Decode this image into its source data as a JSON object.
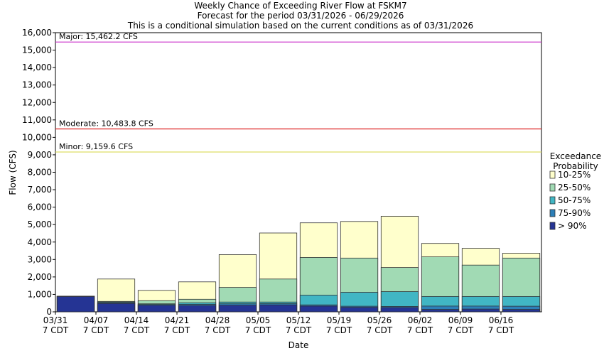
{
  "chart_data": {
    "type": "bar",
    "stacked": true,
    "title_lines": [
      "Weekly Chance of Exceeding River Flow at FSKM7",
      "Forecast for the period 03/31/2026 - 06/29/2026",
      "This is a conditional simulation based on the current conditions as of 03/31/2026"
    ],
    "xlabel": "Date",
    "ylabel": "Flow (CFS)",
    "ylim": [
      0,
      16000
    ],
    "yticks": [
      0,
      1000,
      2000,
      3000,
      4000,
      5000,
      6000,
      7000,
      8000,
      9000,
      10000,
      11000,
      12000,
      13000,
      14000,
      15000,
      16000
    ],
    "ytick_labels": [
      "0",
      "1,000",
      "2,000",
      "3,000",
      "4,000",
      "5,000",
      "6,000",
      "7,000",
      "8,000",
      "9,000",
      "10,000",
      "11,000",
      "12,000",
      "13,000",
      "14,000",
      "15,000",
      "16,000"
    ],
    "x_ticks": [
      {
        "line1": "03/31",
        "line2": "7 CDT"
      },
      {
        "line1": "04/07",
        "line2": "7 CDT"
      },
      {
        "line1": "04/14",
        "line2": "7 CDT"
      },
      {
        "line1": "04/21",
        "line2": "7 CDT"
      },
      {
        "line1": "04/28",
        "line2": "7 CDT"
      },
      {
        "line1": "05/05",
        "line2": "7 CDT"
      },
      {
        "line1": "05/12",
        "line2": "7 CDT"
      },
      {
        "line1": "05/19",
        "line2": "7 CDT"
      },
      {
        "line1": "05/26",
        "line2": "7 CDT"
      },
      {
        "line1": "06/02",
        "line2": "7 CDT"
      },
      {
        "line1": "06/09",
        "line2": "7 CDT"
      },
      {
        "line1": "06/16",
        "line2": "7 CDT"
      }
    ],
    "legend_title": [
      "Exceedance",
      "Probability"
    ],
    "legend_position": "right",
    "series": [
      {
        "name": "10-25%",
        "color": "#ffffcc",
        "top_values": [
          900,
          1880,
          1230,
          1720,
          3280,
          4520,
          5100,
          5180,
          5480,
          3920,
          3640,
          3360
        ]
      },
      {
        "name": "25-50%",
        "color": "#a1dab4",
        "top_values": [
          900,
          600,
          640,
          720,
          1400,
          1880,
          3120,
          3080,
          2540,
          3150,
          2680,
          3080
        ]
      },
      {
        "name": "50-75%",
        "color": "#41b6c4",
        "top_values": [
          900,
          560,
          460,
          520,
          560,
          560,
          960,
          1120,
          1160,
          880,
          880,
          880
        ]
      },
      {
        "name": "75-90%",
        "color": "#2c7fb8",
        "top_values": [
          900,
          520,
          420,
          430,
          460,
          470,
          400,
          320,
          310,
          330,
          330,
          320
        ]
      },
      {
        "name": "> 90%",
        "color": "#253494",
        "top_values": [
          880,
          480,
          380,
          360,
          380,
          400,
          330,
          260,
          250,
          140,
          160,
          140
        ]
      }
    ],
    "thresholds": [
      {
        "label": "Major: 15,462.2 CFS",
        "value": 15462.2,
        "color": "#cc33cc"
      },
      {
        "label": "Moderate: 10,483.8 CFS",
        "value": 10483.8,
        "color": "#dd2222"
      },
      {
        "label": "Minor: 9,159.6 CFS",
        "value": 9159.6,
        "color": "#dddd66"
      }
    ]
  }
}
